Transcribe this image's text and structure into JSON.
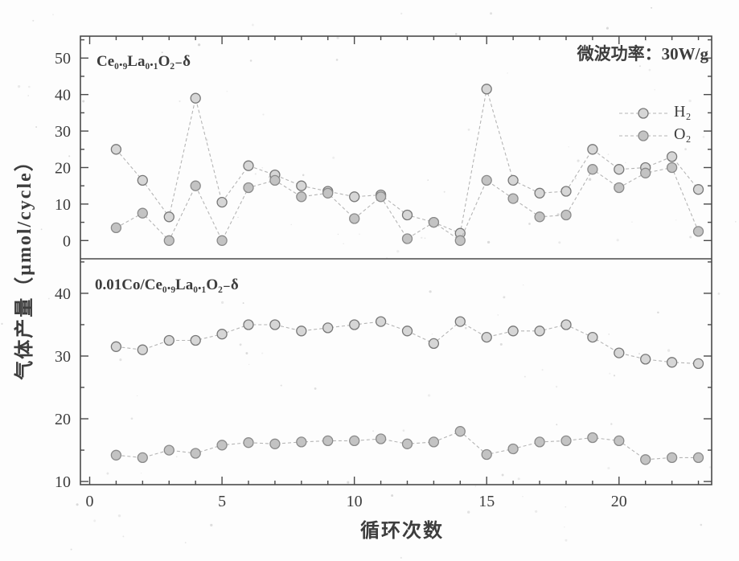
{
  "figure_title": "",
  "colors": {
    "text": "#3d3d3d",
    "axis": "#4a4a4a",
    "series_line": "#b5b5b5",
    "marker_fill_h2": "#d6d6d6",
    "marker_fill_o2": "#c3c3c3",
    "marker_stroke": "#7a7a7a"
  },
  "chart_data": {
    "type": "line",
    "xlabel": "循环次数",
    "ylabel": "气体产量（μmol/cycle）",
    "x": [
      1,
      2,
      3,
      4,
      5,
      6,
      7,
      8,
      9,
      10,
      11,
      12,
      13,
      14,
      15,
      16,
      17,
      18,
      19,
      20,
      21,
      22,
      23
    ],
    "xlim": [
      -0.35,
      23.5
    ],
    "x_major_ticks": [
      0,
      5,
      10,
      15,
      20
    ],
    "legend": {
      "title": "微波功率：30W/g",
      "entries": [
        "H₂",
        "O₂"
      ],
      "position": "top-right"
    },
    "grid": false,
    "panels": [
      {
        "label": "Ce₀.₉La₀.₁O₂₋δ",
        "ylim": [
          -5,
          56
        ],
        "yticks": [
          0,
          10,
          20,
          30,
          40,
          50
        ],
        "yticks_minor": [
          5,
          15,
          25,
          35,
          45,
          55
        ],
        "series": [
          {
            "name": "H₂",
            "values": [
              25,
              16.5,
              6.5,
              39,
              10.5,
              20.5,
              18,
              15,
              13.5,
              12,
              12.5,
              7,
              5,
              2,
              41.5,
              16.5,
              13,
              13.5,
              25,
              19.5,
              20,
              23,
              14
            ]
          },
          {
            "name": "O₂",
            "values": [
              3.5,
              7.5,
              0,
              15,
              0,
              14.5,
              16.5,
              12,
              13,
              6,
              12,
              0.5,
              5,
              0,
              16.5,
              11.5,
              6.5,
              7,
              19.5,
              14.5,
              18.5,
              20,
              2.5
            ]
          }
        ]
      },
      {
        "label": "0.01Co/Ce₀.₉La₀.₁O₂₋δ",
        "ylim": [
          9.5,
          45.5
        ],
        "yticks": [
          10,
          20,
          30,
          40
        ],
        "yticks_minor": [
          15,
          25,
          35,
          45
        ],
        "series": [
          {
            "name": "H₂",
            "values": [
              31.5,
              31,
              32.5,
              32.5,
              33.5,
              35,
              35,
              34,
              34.5,
              35,
              35.5,
              34,
              32,
              35.5,
              33,
              34,
              34,
              35,
              33,
              30.5,
              29.5,
              29,
              28.8
            ]
          },
          {
            "name": "O₂",
            "values": [
              14.2,
              13.8,
              15,
              14.5,
              15.8,
              16.2,
              16,
              16.3,
              16.5,
              16.5,
              16.8,
              16,
              16.3,
              18,
              14.3,
              15.2,
              16.3,
              16.5,
              17,
              16.5,
              13.5,
              13.8,
              13.8
            ]
          }
        ]
      }
    ]
  }
}
